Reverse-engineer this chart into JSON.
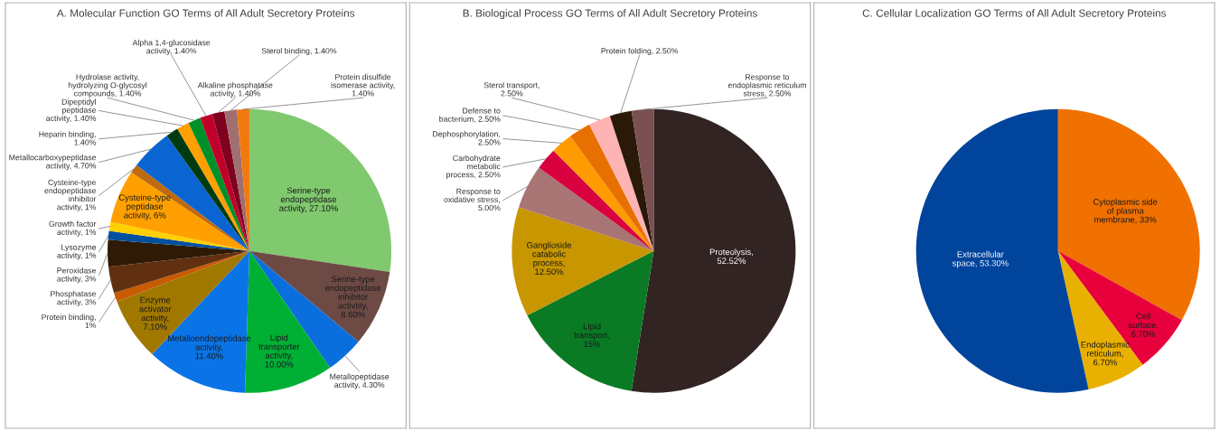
{
  "chart_data": [
    {
      "type": "pie",
      "title": "A. Molecular Function GO Terms of All Adult Secretory Proteins",
      "categories": [
        "Serine-type endopeptidase activity, 27.10%",
        "Serine-type endopeptidase inhibitor activtity, 8.60%",
        "Metallopeptidase activity, 4.30%",
        "Lipid transporter activity, 10.00%",
        "Metalloendopeptidase activity, 11.40%",
        "Enzyme activator activity, 7.10%",
        "Protein binding, 1%",
        "Phosphatase activity, 3%",
        "Peroxidase activity, 3%",
        "Lysozyme activity, 1%",
        "Growth factor activity, 1%",
        "Cysteine-type peptidase activity, 6%",
        "Cysteine-type endopeptidase inhibitor activity, 1%",
        "Metallocarboxypeptidase activity, 4.70%",
        "Heparin binding, 1.40%",
        "Dipeptidyl peptidase activity, 1.40%",
        "Hydrolase activity, hydrolyzing O-glycosyl compounds, 1.40%",
        "Alpha 1,4-glucosidase activity, 1.40%",
        "Alkaline phosphatase activity, 1.40%",
        "Sterol binding, 1.40%",
        "Protein disulfide isomerase activity, 1.40%"
      ],
      "values": [
        27.1,
        8.6,
        4.3,
        10.0,
        11.4,
        7.1,
        1,
        3,
        3,
        1,
        1,
        6,
        1,
        4.7,
        1.4,
        1.4,
        1.4,
        1.4,
        1.4,
        1.4,
        1.4
      ],
      "colors": [
        "#80c96e",
        "#6e4a45",
        "#0a6fdc",
        "#00b035",
        "#0a74e6",
        "#a07800",
        "#c85a00",
        "#603010",
        "#2e1a05",
        "#0050a0",
        "#ffd000",
        "#ffa000",
        "#c06a10",
        "#0a64d2",
        "#003a10",
        "#ffa000",
        "#00902a",
        "#c0002a",
        "#800020",
        "#a07070",
        "#f07a10"
      ]
    },
    {
      "type": "pie",
      "title": "B. Biological Process GO Terms of All Adult Secretory Proteins",
      "categories": [
        "Proteolysis, 52.52%",
        "Lipid transport, 15%",
        "Ganglioside catabolic process, 12.50%",
        "Response to oxidative stress, 5.00%",
        "Carbohydrate metabolic process, 2.50%",
        "Dephosphorylation, 2.50%",
        "Defense to bacterium, 2.50%",
        "Sterol transport, 2.50%",
        "Protein folding, 2.50%",
        "Response to endoplasmic reticulum stress, 2.50%"
      ],
      "values": [
        52.52,
        15,
        12.5,
        5.0,
        2.5,
        2.5,
        2.5,
        2.5,
        2.5,
        2.5
      ],
      "colors": [
        "#332424",
        "#0a7a25",
        "#c89600",
        "#a87474",
        "#d8003e",
        "#ff9a00",
        "#e87000",
        "#ffb4b4",
        "#2a1808",
        "#7a5050"
      ]
    },
    {
      "type": "pie",
      "title": "C. Cellular Localization GO Terms of All Adult Secretory Proteins",
      "categories": [
        "Cytoplasmic side of plasma membrane, 33%",
        "Cell surface, 6.70%",
        "Endoplasmic reticulum, 6.70%",
        "Extracellular space, 53.30%"
      ],
      "values": [
        33,
        6.7,
        6.7,
        53.3
      ],
      "colors": [
        "#f07000",
        "#e8003c",
        "#e8b000",
        "#00449c"
      ]
    }
  ]
}
